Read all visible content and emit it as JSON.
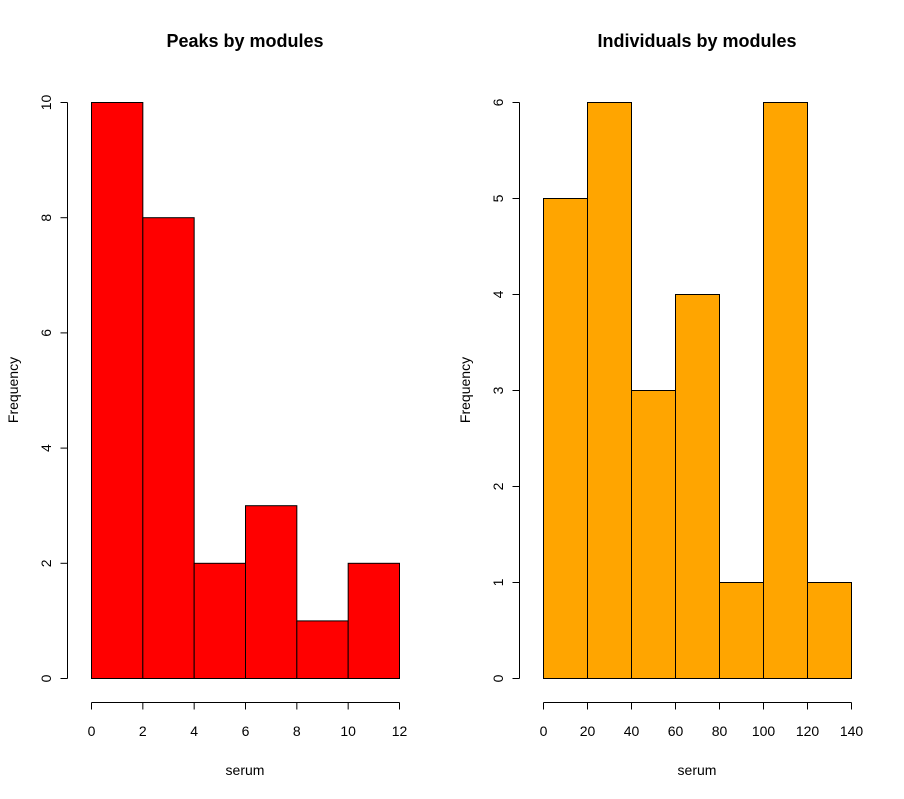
{
  "chart_data": [
    {
      "type": "bar",
      "title": "Peaks by modules",
      "xlabel": "serum",
      "ylabel": "Frequency",
      "bin_edges": [
        0,
        2,
        4,
        6,
        8,
        10,
        12
      ],
      "values": [
        10,
        8,
        2,
        3,
        1,
        2
      ],
      "xlim": [
        0,
        12
      ],
      "ylim": [
        0,
        10
      ],
      "xticks": [
        "0",
        "2",
        "4",
        "6",
        "8",
        "10",
        "12"
      ],
      "yticks": [
        "0",
        "2",
        "4",
        "6",
        "8",
        "10"
      ],
      "color": "#ff0000",
      "grid": false
    },
    {
      "type": "bar",
      "title": "Individuals by modules",
      "xlabel": "serum",
      "ylabel": "Frequency",
      "bin_edges": [
        0,
        20,
        40,
        60,
        80,
        100,
        120,
        140
      ],
      "values": [
        5,
        6,
        3,
        4,
        1,
        6,
        1
      ],
      "xlim": [
        0,
        140
      ],
      "ylim": [
        0,
        6
      ],
      "xticks": [
        "0",
        "20",
        "40",
        "60",
        "80",
        "100",
        "120",
        "140"
      ],
      "yticks": [
        "0",
        "1",
        "2",
        "3",
        "4",
        "5",
        "6"
      ],
      "color": "#ffa500",
      "grid": false
    }
  ]
}
